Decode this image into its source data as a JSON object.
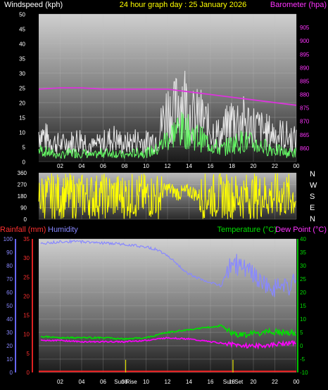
{
  "header": {
    "left_label": "Windspeed (kph)",
    "title": "24 hour graph day : 25 January 2026",
    "right_label": "Barometer (hpa)"
  },
  "colors": {
    "background": "#000000",
    "wind_gust": "#e8e8e8",
    "wind_avg": "#66ff66",
    "barometer": "#dd33dd",
    "direction": "#ffff00",
    "humidity": "#8888ff",
    "temperature": "#00e000",
    "dewpoint": "#ff00ff",
    "rainfall": "#ff2020",
    "sun_marker": "#e0e000"
  },
  "compass_labels": [
    "N",
    "W",
    "S",
    "E",
    "N"
  ],
  "sun_labels": {
    "rise": "Sun Rise",
    "set": "Sun Set"
  },
  "chart_data": [
    {
      "type": "line",
      "name": "wind-baro",
      "x_ticks": [
        "02",
        "04",
        "06",
        "08",
        "10",
        "12",
        "14",
        "16",
        "18",
        "20",
        "22",
        "00"
      ],
      "ylabel": "Windspeed (kph)",
      "ylim": [
        0,
        50
      ],
      "y_ticks": [
        0,
        5,
        10,
        15,
        20,
        25,
        30,
        35,
        40,
        45,
        50
      ],
      "y2label": "Barometer (hpa)",
      "y2lim": [
        855,
        910
      ],
      "y2_ticks": [
        860,
        865,
        870,
        875,
        880,
        885,
        890,
        895,
        900,
        905
      ],
      "series": [
        {
          "name": "Windspeed (kph)",
          "role": "gust",
          "x": [
            0,
            1,
            2,
            3,
            4,
            5,
            6,
            7,
            8,
            9,
            10,
            11,
            11.5,
            12,
            12.5,
            13,
            13.5,
            14,
            14.5,
            15,
            16,
            17,
            18,
            19,
            20,
            21,
            22,
            23,
            24
          ],
          "values": [
            14,
            10,
            8,
            9,
            11,
            7,
            9,
            11,
            8,
            10,
            9,
            11,
            18,
            25,
            22,
            28,
            31,
            24,
            20,
            22,
            15,
            12,
            20,
            19,
            17,
            14,
            13,
            12,
            10
          ]
        },
        {
          "name": "Windspeed (kph)",
          "role": "average",
          "x": [
            0,
            1,
            2,
            3,
            4,
            5,
            6,
            7,
            8,
            9,
            10,
            11,
            12,
            13,
            14,
            15,
            16,
            17,
            18,
            19,
            20,
            21,
            22,
            23,
            24
          ],
          "values": [
            4,
            3,
            2,
            3,
            3,
            2,
            3,
            3,
            2,
            3,
            3,
            4,
            8,
            11,
            10,
            8,
            6,
            4,
            6,
            7,
            6,
            5,
            4,
            3,
            3
          ]
        },
        {
          "name": "Barometer (hpa)",
          "axis": "right",
          "x": [
            0,
            2,
            4,
            6,
            8,
            10,
            12,
            14,
            16,
            18,
            20,
            22,
            24
          ],
          "values": [
            882,
            882.5,
            882.5,
            882,
            882,
            882,
            882,
            881,
            880,
            879,
            878,
            877,
            876
          ]
        }
      ]
    },
    {
      "type": "scatter",
      "name": "wind-direction",
      "ylim": [
        0,
        360
      ],
      "y_ticks": [
        0,
        90,
        180,
        270,
        360
      ],
      "series": [
        {
          "name": "direction",
          "x": [
            0,
            1,
            2,
            3,
            4,
            5,
            6,
            7,
            8,
            9,
            10,
            11,
            12,
            13,
            14,
            15,
            16,
            17,
            18,
            19,
            20,
            21,
            22,
            23,
            24
          ],
          "values": [
            300,
            280,
            200,
            150,
            260,
            120,
            240,
            180,
            300,
            100,
            220,
            180,
            240,
            200,
            220,
            180,
            200,
            150,
            220,
            180,
            240,
            160,
            200,
            210,
            80
          ]
        }
      ]
    },
    {
      "type": "line",
      "name": "temp-hum-rain",
      "x_ticks": [
        "02",
        "04",
        "06",
        "08",
        "10",
        "12",
        "14",
        "16",
        "18",
        "20",
        "22",
        "00"
      ],
      "left_labels": [
        "Rainfall (mm)",
        "Humidity"
      ],
      "right_labels": [
        "Temperature (°C)",
        "Dew Point (°C)"
      ],
      "humidity_ticks": [
        0,
        10,
        20,
        30,
        40,
        50,
        60,
        70,
        80,
        90,
        100
      ],
      "humidity_lim": [
        0,
        100
      ],
      "rain_ticks": [
        0,
        5,
        10,
        15,
        20,
        25,
        30,
        35
      ],
      "rain_lim": [
        0,
        35
      ],
      "temp_ticks": [
        -10,
        -5,
        0,
        5,
        10,
        15,
        20,
        25,
        30,
        35,
        40
      ],
      "temp_lim": [
        -10,
        40
      ],
      "sun_rise_hour": 8.1,
      "sun_set_hour": 18.1,
      "series": [
        {
          "name": "Humidity",
          "x": [
            0,
            2,
            4,
            6,
            8,
            9,
            10,
            11,
            12,
            13,
            14,
            15,
            16,
            17,
            18,
            19,
            20,
            21,
            22,
            23,
            24
          ],
          "values": [
            96,
            98,
            98,
            97,
            96,
            95,
            94,
            92,
            88,
            80,
            74,
            70,
            67,
            65,
            83,
            78,
            72,
            66,
            63,
            63,
            68
          ]
        },
        {
          "name": "Temperature (°C)",
          "x": [
            0,
            2,
            4,
            6,
            8,
            10,
            12,
            14,
            16,
            17,
            18,
            19,
            20,
            21,
            22,
            23,
            24
          ],
          "values": [
            3.5,
            3,
            3,
            3,
            2.5,
            3,
            5,
            6,
            7,
            7.5,
            5,
            4,
            4.5,
            5,
            5,
            5,
            5
          ]
        },
        {
          "name": "Dew Point (°C)",
          "x": [
            0,
            2,
            4,
            6,
            8,
            10,
            12,
            14,
            16,
            17,
            18,
            19,
            20,
            21,
            22,
            23,
            24
          ],
          "values": [
            2,
            2,
            1.5,
            1.5,
            1.5,
            2,
            3,
            2.5,
            1.5,
            1,
            0.5,
            0,
            0,
            0,
            0.5,
            1,
            1
          ]
        },
        {
          "name": "Rainfall (mm)",
          "x": [
            0,
            24
          ],
          "values": [
            0,
            0
          ]
        }
      ]
    }
  ]
}
